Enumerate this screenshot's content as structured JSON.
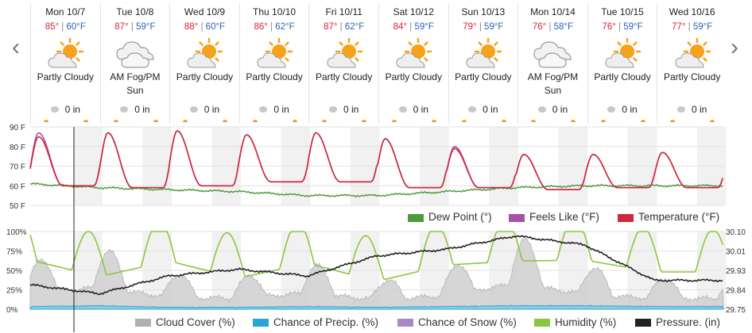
{
  "nav": {
    "prev_icon": "chevron-left-icon",
    "next_icon": "chevron-right-icon",
    "prev_glyph": "‹",
    "next_glyph": "›"
  },
  "days": [
    {
      "name": "Mon 10/7",
      "hi": "85°",
      "lo": "60°F",
      "icon": "partly-cloudy-icon",
      "cond": "Partly Cloudy",
      "precip": "0 in"
    },
    {
      "name": "Tue 10/8",
      "hi": "87°",
      "lo": "59°F",
      "icon": "fog-cloud-icon",
      "cond": "AM Fog/PM Sun",
      "precip": "0 in"
    },
    {
      "name": "Wed 10/9",
      "hi": "88°",
      "lo": "60°F",
      "icon": "partly-cloudy-icon",
      "cond": "Partly Cloudy",
      "precip": "0 in"
    },
    {
      "name": "Thu 10/10",
      "hi": "86°",
      "lo": "62°F",
      "icon": "partly-cloudy-icon",
      "cond": "Partly Cloudy",
      "precip": "0 in"
    },
    {
      "name": "Fri 10/11",
      "hi": "87°",
      "lo": "62°F",
      "icon": "partly-cloudy-icon",
      "cond": "Partly Cloudy",
      "precip": "0 in"
    },
    {
      "name": "Sat 10/12",
      "hi": "84°",
      "lo": "59°F",
      "icon": "partly-cloudy-icon",
      "cond": "Partly Cloudy",
      "precip": "0 in"
    },
    {
      "name": "Sun 10/13",
      "hi": "79°",
      "lo": "59°F",
      "icon": "partly-cloudy-icon",
      "cond": "Partly Cloudy",
      "precip": "0 in"
    },
    {
      "name": "Mon 10/14",
      "hi": "76°",
      "lo": "58°F",
      "icon": "fog-cloud-icon",
      "cond": "AM Fog/PM Sun",
      "precip": "0 in"
    },
    {
      "name": "Tue 10/15",
      "hi": "76°",
      "lo": "59°F",
      "icon": "partly-cloudy-icon",
      "cond": "Partly Cloudy",
      "precip": "0 in"
    },
    {
      "name": "Wed 10/16",
      "hi": "77°",
      "lo": "59°F",
      "icon": "partly-cloudy-icon",
      "cond": "Partly Cloudy",
      "precip": "0 in"
    }
  ],
  "temp_chart": {
    "y_ticks": [
      "90 F",
      "80 F",
      "70 F",
      "60 F",
      "50 F"
    ],
    "ylim": [
      50,
      90
    ],
    "legend": [
      {
        "label": "Dew Point (°)",
        "color": "#4f9a3c"
      },
      {
        "label": "Feels Like (°F)",
        "color": "#a851a8"
      },
      {
        "label": "Temperature (°F)",
        "color": "#d0283a"
      }
    ]
  },
  "cond_chart": {
    "y_ticks_left": [
      "100%",
      "75%",
      "50%",
      "25%",
      "0%"
    ],
    "y_ticks_right": [
      "30.10",
      "30.01",
      "29.93",
      "29.84",
      "29.75"
    ],
    "legend": [
      {
        "label": "Cloud Cover (%)",
        "color": "#b0b0b0"
      },
      {
        "label": "Chance of Precip. (%)",
        "color": "#2aa6d6"
      },
      {
        "label": "Chance of Snow (%)",
        "color": "#a888c8"
      },
      {
        "label": "Humidity (%)",
        "color": "#8cc63f"
      },
      {
        "label": "Pressure. (in)",
        "color": "#222222"
      }
    ]
  },
  "chart_data": [
    {
      "type": "line",
      "categories": [
        "Mon 10/7",
        "Tue 10/8",
        "Wed 10/9",
        "Thu 10/10",
        "Fri 10/11",
        "Sat 10/12",
        "Sun 10/13",
        "Mon 10/14",
        "Tue 10/15",
        "Wed 10/16"
      ],
      "series": [
        {
          "name": "Temperature (°F)",
          "values_high": [
            85,
            87,
            88,
            86,
            87,
            84,
            79,
            76,
            76,
            77
          ],
          "values_low": [
            60,
            59,
            60,
            62,
            62,
            59,
            59,
            58,
            59,
            59
          ]
        },
        {
          "name": "Feels Like (°F)",
          "values_high": [
            87,
            87,
            88,
            86,
            87,
            84,
            80,
            76,
            76,
            77
          ]
        },
        {
          "name": "Dew Point (°)",
          "values": [
            61,
            59,
            58,
            57,
            55,
            55,
            57,
            59,
            60,
            60
          ]
        }
      ],
      "ylim": [
        50,
        90
      ]
    },
    {
      "type": "line",
      "categories": [
        "Mon 10/7",
        "Tue 10/8",
        "Wed 10/9",
        "Thu 10/10",
        "Fri 10/11",
        "Sat 10/12",
        "Sun 10/13",
        "Mon 10/14",
        "Tue 10/15",
        "Wed 10/16"
      ],
      "series": [
        {
          "name": "Humidity (%)",
          "values": [
            98,
            45,
            95,
            40,
            88,
            30,
            82,
            95,
            98,
            60
          ]
        },
        {
          "name": "Cloud Cover (%)",
          "values": [
            60,
            80,
            45,
            40,
            60,
            35,
            50,
            95,
            55,
            40
          ]
        },
        {
          "name": "Chance of Precip. (%)",
          "values": [
            3,
            4,
            2,
            2,
            3,
            2,
            3,
            4,
            4,
            3
          ]
        },
        {
          "name": "Pressure. (in)",
          "values": [
            29.86,
            29.82,
            29.9,
            29.93,
            29.9,
            29.99,
            30.02,
            30.08,
            30.04,
            29.88
          ]
        }
      ],
      "ylim_left": [
        0,
        100
      ],
      "ylim_right": [
        29.75,
        30.1
      ]
    }
  ]
}
